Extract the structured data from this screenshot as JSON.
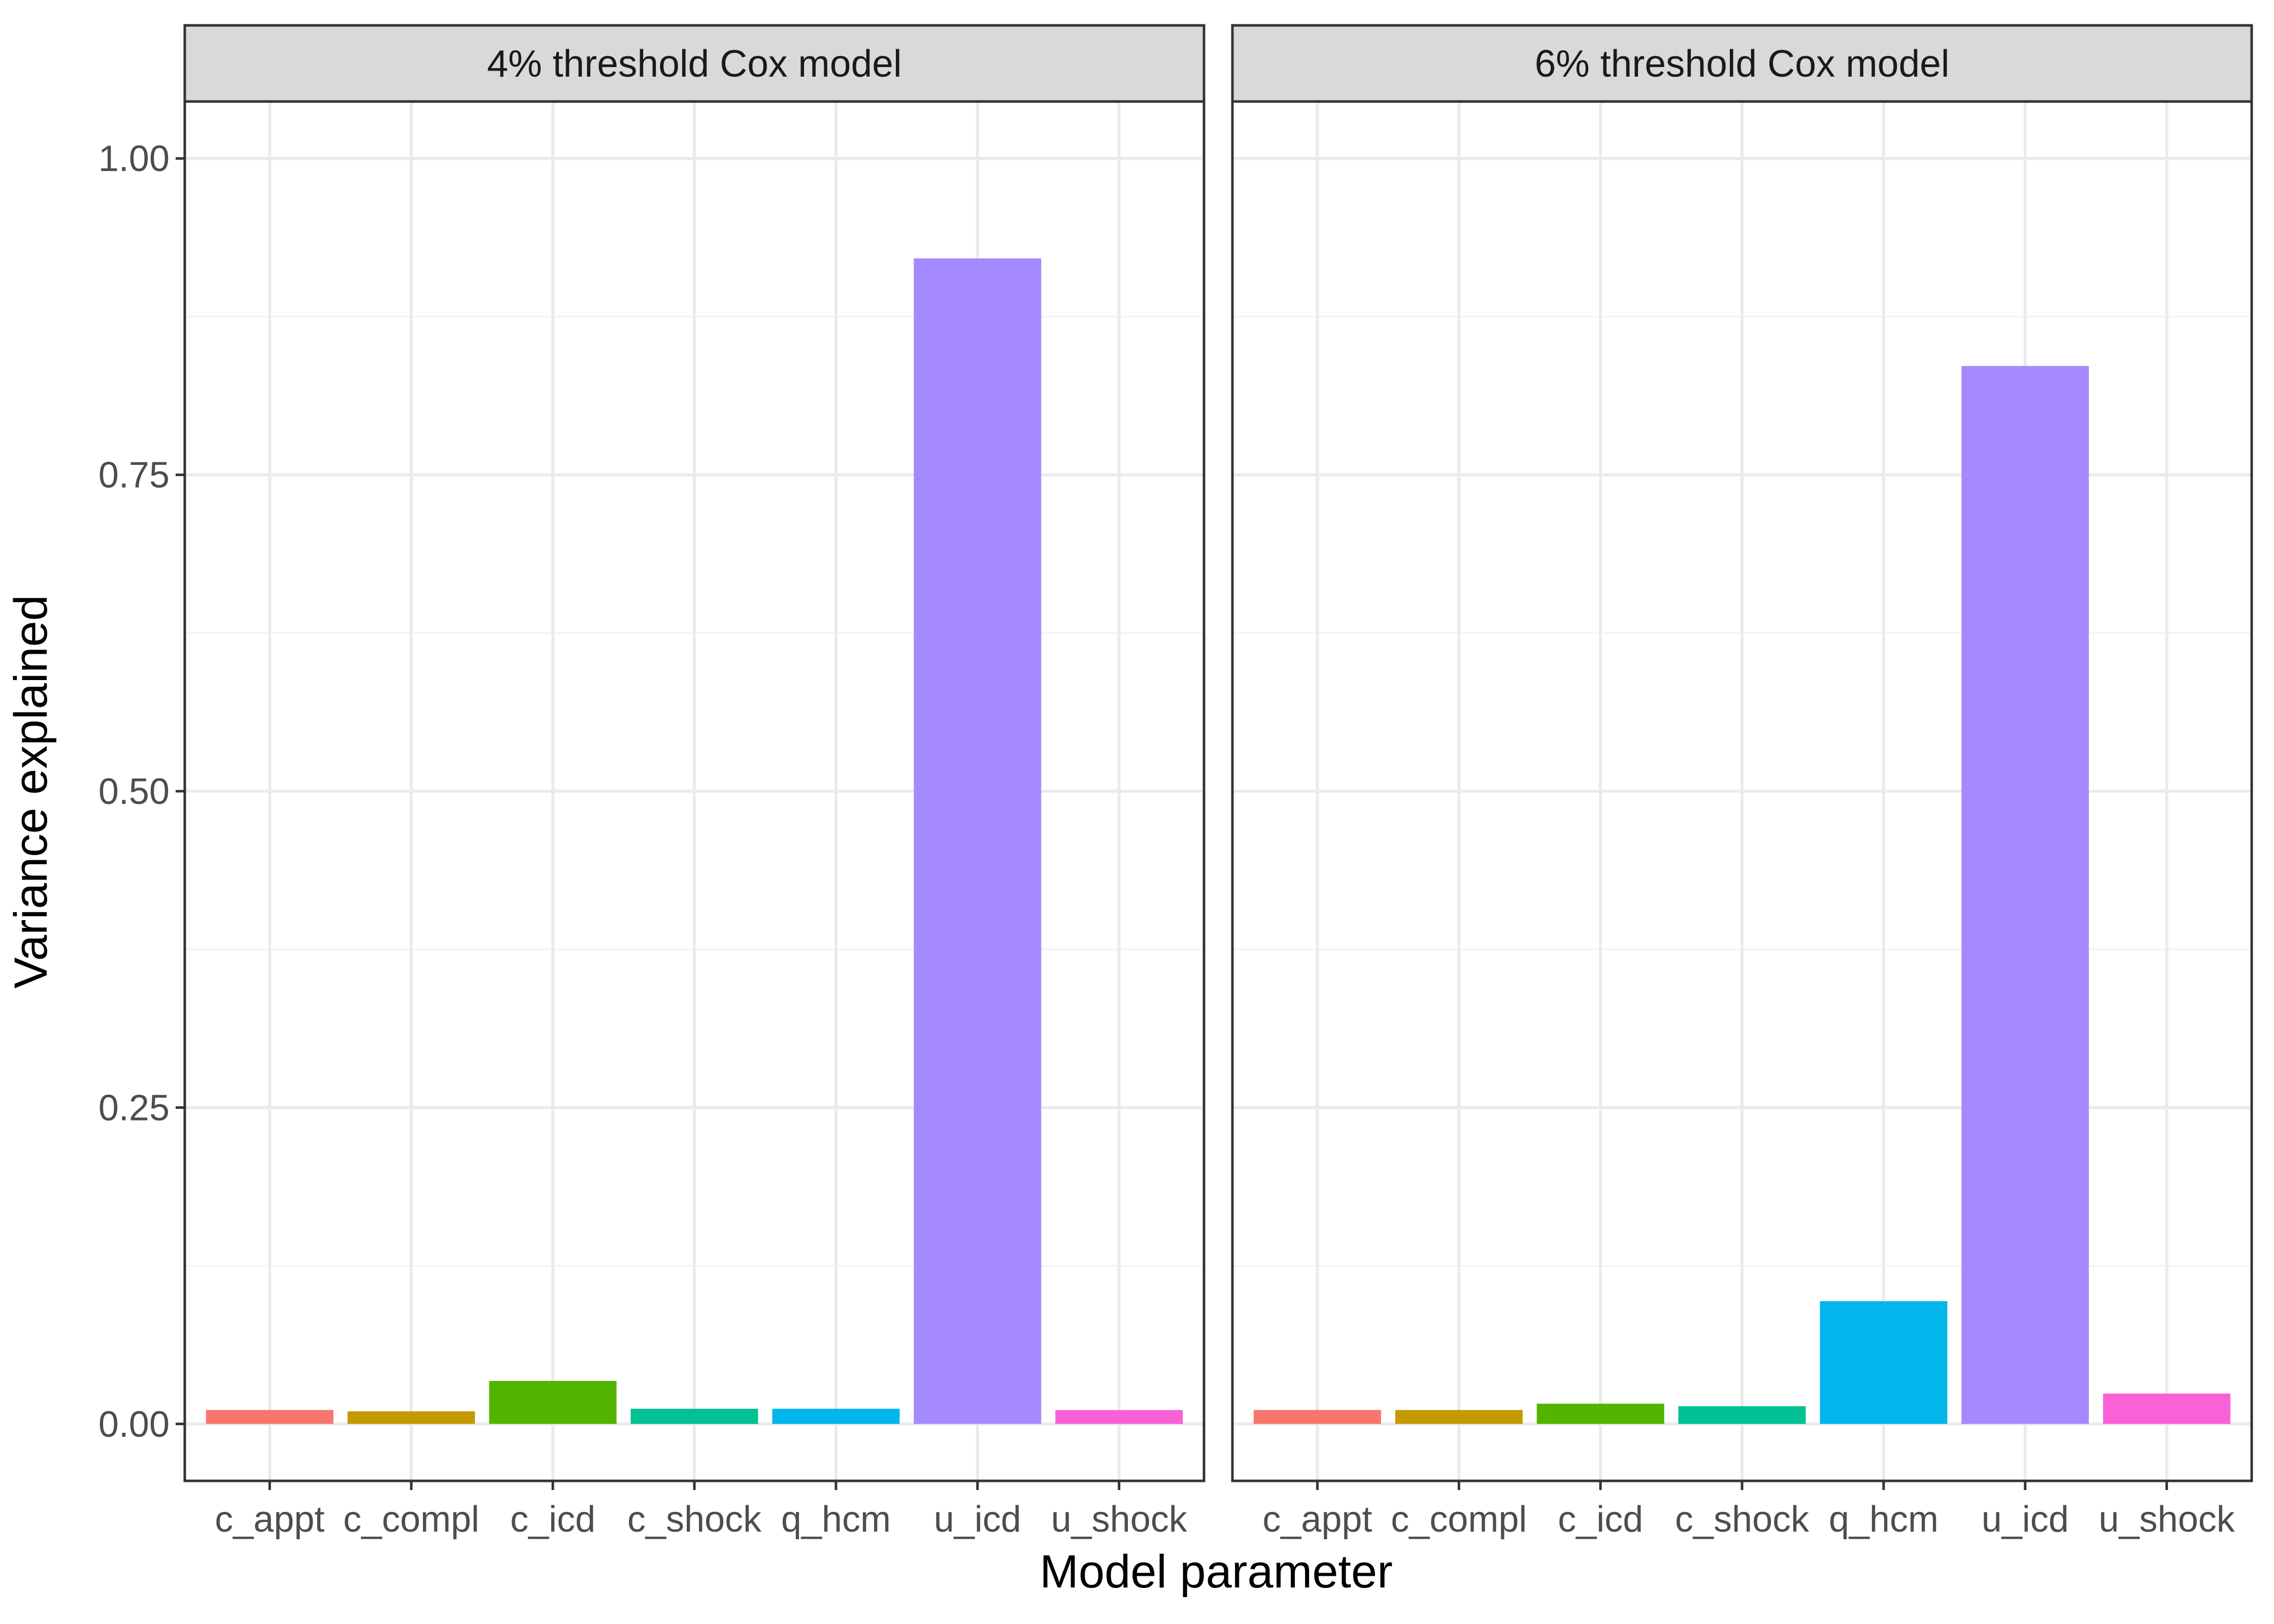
{
  "chart_data": {
    "type": "bar",
    "xlabel": "Model parameter",
    "ylabel": "Variance explained",
    "ylim": [
      -0.045,
      1.045
    ],
    "yticks": [
      0.0,
      0.25,
      0.5,
      0.75,
      1.0
    ],
    "ytick_labels": [
      "0.00",
      "0.25",
      "0.50",
      "0.75",
      "1.00"
    ],
    "grid": true,
    "legend": "none",
    "categories": [
      "c_appt",
      "c_compl",
      "c_icd",
      "c_shock",
      "q_hcm",
      "u_icd",
      "u_shock"
    ],
    "colors": [
      "#F8766D",
      "#C49A00",
      "#53B400",
      "#00C094",
      "#00B6EB",
      "#A58AFF",
      "#FB61D7"
    ],
    "panels": [
      {
        "title": "4% threshold Cox model",
        "values": [
          0.011,
          0.01,
          0.034,
          0.012,
          0.012,
          0.921,
          0.011
        ]
      },
      {
        "title": "6% threshold Cox model",
        "values": [
          0.011,
          0.011,
          0.016,
          0.014,
          0.097,
          0.836,
          0.024
        ]
      }
    ]
  }
}
